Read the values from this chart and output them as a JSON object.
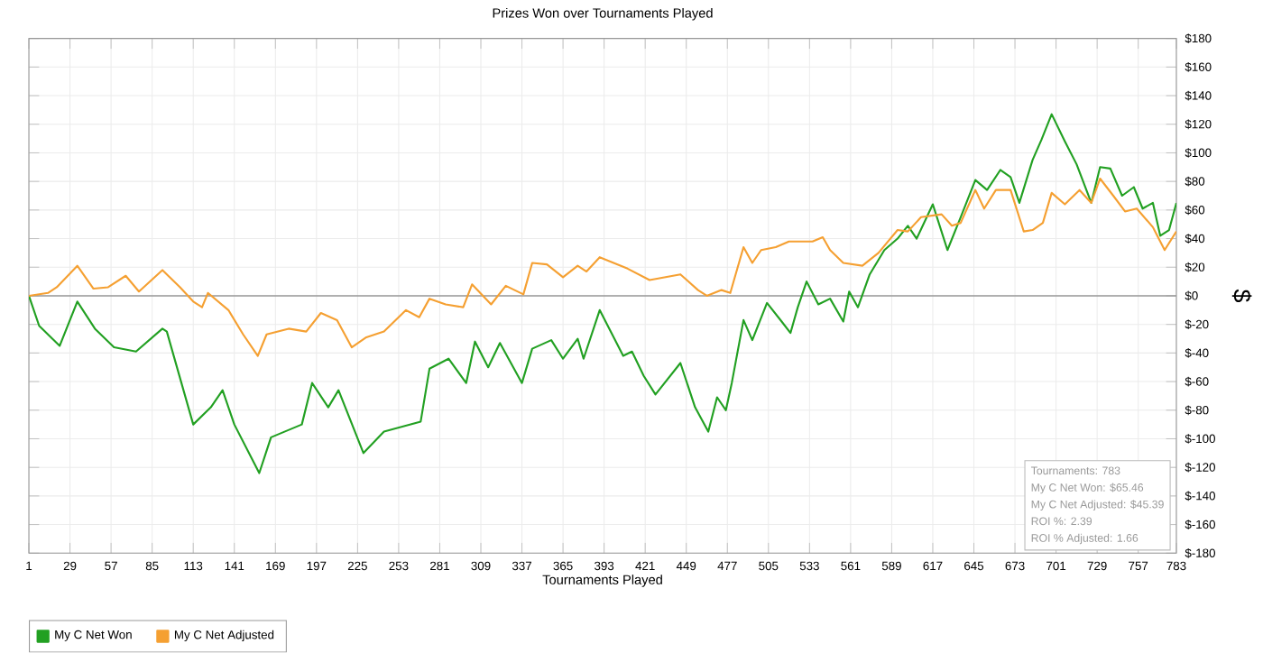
{
  "chart_data": {
    "type": "line",
    "title": "Prizes Won over Tournaments Played",
    "xlabel": "Tournaments Played",
    "ylabel": "$",
    "annotations": [
      "Tournaments: 783",
      "My C Net Won: $65.46",
      "My C Net Adjusted: $45.39",
      "ROI %: 2.39",
      "ROI % Adjusted: 1.66"
    ],
    "xlim": [
      1,
      783
    ],
    "xticks": [
      1,
      29,
      57,
      85,
      113,
      141,
      169,
      197,
      225,
      253,
      281,
      309,
      337,
      365,
      393,
      421,
      449,
      477,
      505,
      533,
      561,
      589,
      617,
      645,
      673,
      701,
      729,
      757,
      783
    ],
    "ylim": [
      -180,
      180
    ],
    "yticks": [
      {
        "value": -180,
        "label": "$-180"
      },
      {
        "value": -160,
        "label": "$-160"
      },
      {
        "value": -140,
        "label": "$-140"
      },
      {
        "value": -120,
        "label": "$-120"
      },
      {
        "value": -100,
        "label": "$-100"
      },
      {
        "value": -80,
        "label": "$-80"
      },
      {
        "value": -60,
        "label": "$-60"
      },
      {
        "value": -40,
        "label": "$-40"
      },
      {
        "value": -20,
        "label": "$-20"
      },
      {
        "value": 0,
        "label": "$0"
      },
      {
        "value": 20,
        "label": "$20"
      },
      {
        "value": 40,
        "label": "$40"
      },
      {
        "value": 60,
        "label": "$60"
      },
      {
        "value": 80,
        "label": "$80"
      },
      {
        "value": 100,
        "label": "$100"
      },
      {
        "value": 120,
        "label": "$120"
      },
      {
        "value": 140,
        "label": "$140"
      },
      {
        "value": 160,
        "label": "$160"
      },
      {
        "value": 180,
        "label": "$180"
      }
    ],
    "grid": true,
    "legend": "bottom left",
    "marker": "none",
    "line_style": "solid",
    "ref_lines": [
      {
        "axis": "y",
        "value": 0,
        "color": "#999999"
      }
    ],
    "series": [
      {
        "name": "My C Net Won",
        "color": "#22a022",
        "x": [
          1,
          8,
          22,
          34,
          46,
          59,
          74,
          92,
          95,
          113,
          125,
          133,
          141,
          158,
          166,
          187,
          194,
          205,
          212,
          229,
          243,
          268,
          274,
          287,
          299,
          305,
          314,
          322,
          337,
          344,
          357,
          365,
          375,
          379,
          390,
          406,
          412,
          420,
          428,
          445,
          455,
          464,
          470,
          476,
          480,
          488,
          494,
          504,
          514,
          520,
          525,
          531,
          539,
          547,
          556,
          560,
          566,
          574,
          584,
          593,
          600,
          606,
          617,
          627,
          636,
          646,
          654,
          663,
          670,
          676,
          685,
          691,
          698,
          707,
          715,
          725,
          731,
          738,
          746,
          754,
          760,
          767,
          772,
          778,
          783
        ],
        "values": [
          0,
          -21,
          -35,
          -4,
          -23,
          -36,
          -39,
          -23,
          -25,
          -90,
          -78,
          -66,
          -90,
          -124,
          -99,
          -90,
          -61,
          -78,
          -66,
          -110,
          -95,
          -88,
          -51,
          -44,
          -61,
          -32,
          -50,
          -33,
          -61,
          -37,
          -31,
          -44,
          -30,
          -44,
          -10,
          -42,
          -39,
          -56,
          -69,
          -47,
          -78,
          -95,
          -71,
          -80,
          -61,
          -17,
          -31,
          -5,
          -18,
          -26,
          -8,
          10,
          -6,
          -2,
          -18,
          3,
          -8,
          15,
          32,
          40,
          49,
          40,
          64,
          32,
          55,
          81,
          74,
          88,
          83,
          65,
          95,
          109,
          127,
          108,
          92,
          65,
          90,
          89,
          70,
          76,
          61,
          65,
          42,
          46,
          65
        ]
      },
      {
        "name": "My C Net Adjusted",
        "color": "#f5a032",
        "x": [
          1,
          14,
          20,
          34,
          45,
          55,
          67,
          76,
          92,
          104,
          113,
          119,
          123,
          137,
          147,
          157,
          163,
          178,
          190,
          200,
          211,
          221,
          231,
          243,
          258,
          267,
          274,
          285,
          297,
          303,
          316,
          326,
          338,
          344,
          354,
          365,
          375,
          381,
          390,
          409,
          424,
          445,
          457,
          463,
          473,
          479,
          488,
          494,
          500,
          510,
          519,
          526,
          535,
          542,
          547,
          556,
          569,
          580,
          593,
          600,
          609,
          623,
          630,
          636,
          646,
          652,
          660,
          670,
          679,
          685,
          692,
          698,
          707,
          717,
          725,
          731,
          740,
          748,
          756,
          767,
          775,
          783
        ],
        "values": [
          0,
          2,
          6,
          21,
          5,
          6,
          14,
          3,
          18,
          6,
          -4,
          -8,
          2,
          -10,
          -27,
          -42,
          -27,
          -23,
          -25,
          -12,
          -17,
          -36,
          -29,
          -25,
          -10,
          -15,
          -2,
          -6,
          -8,
          8,
          -6,
          7,
          1,
          23,
          22,
          13,
          21,
          17,
          27,
          19,
          11,
          15,
          4,
          0,
          4,
          2,
          34,
          23,
          32,
          34,
          38,
          38,
          38,
          41,
          32,
          23,
          21,
          30,
          46,
          45,
          55,
          57,
          49,
          51,
          74,
          61,
          74,
          74,
          45,
          46,
          51,
          72,
          64,
          74,
          65,
          82,
          70,
          59,
          61,
          48,
          32,
          45
        ]
      }
    ]
  }
}
